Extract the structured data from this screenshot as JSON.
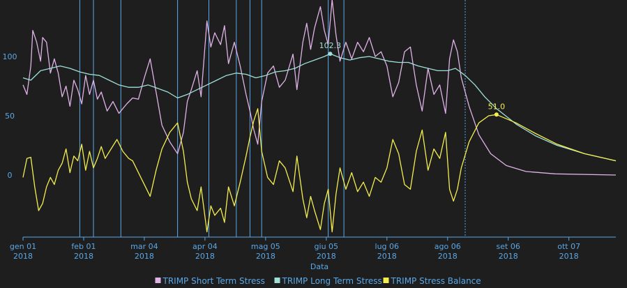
{
  "chart_data": {
    "type": "line",
    "xlabel": "Data",
    "ylabel": "",
    "x_range": [
      "2018-01-01",
      "2018-10-31"
    ],
    "ylim": [
      -50,
      145
    ],
    "y_ticks": [
      0,
      50,
      100
    ],
    "x_ticks": [
      {
        "date": "2018-01-01",
        "line1": "gen 01",
        "line2": "2018"
      },
      {
        "date": "2018-02-01",
        "line1": "feb 01",
        "line2": "2018"
      },
      {
        "date": "2018-03-04",
        "line1": "mar 04",
        "line2": "2018"
      },
      {
        "date": "2018-04-04",
        "line1": "apr 04",
        "line2": "2018"
      },
      {
        "date": "2018-05-05",
        "line1": "mag 05",
        "line2": "2018"
      },
      {
        "date": "2018-06-05",
        "line1": "giu 05",
        "line2": "2018"
      },
      {
        "date": "2018-07-06",
        "line1": "lug 06",
        "line2": "2018"
      },
      {
        "date": "2018-08-06",
        "line1": "ago 06",
        "line2": "2018"
      },
      {
        "date": "2018-09-06",
        "line1": "set 06",
        "line2": "2018"
      },
      {
        "date": "2018-10-07",
        "line1": "ott 07",
        "line2": "2018"
      }
    ],
    "today_marker": "2018-08-15",
    "event_lines": [
      "2018-01-30",
      "2018-02-06",
      "2018-02-20",
      "2018-03-21",
      "2018-04-06",
      "2018-04-20",
      "2018-04-27",
      "2018-05-03",
      "2018-06-06",
      "2018-06-14"
    ],
    "annotations": [
      {
        "series": "TRIMP Long Term Stress",
        "date": "2018-06-07",
        "value": 102.3,
        "label": "102.3",
        "color": "#9fe0d8"
      },
      {
        "series": "TRIMP Stress Balance",
        "date": "2018-08-31",
        "value": 51.0,
        "label": "51.0",
        "color": "#f4ee50"
      }
    ],
    "series": [
      {
        "name": "TRIMP Short Term Stress",
        "color": "#e0b3e8",
        "points": [
          [
            "2018-01-01",
            76
          ],
          [
            "2018-01-03",
            68
          ],
          [
            "2018-01-05",
            92
          ],
          [
            "2018-01-06",
            122
          ],
          [
            "2018-01-08",
            112
          ],
          [
            "2018-01-10",
            96
          ],
          [
            "2018-01-11",
            116
          ],
          [
            "2018-01-13",
            112
          ],
          [
            "2018-01-15",
            86
          ],
          [
            "2018-01-17",
            98
          ],
          [
            "2018-01-19",
            86
          ],
          [
            "2018-01-21",
            66
          ],
          [
            "2018-01-23",
            75
          ],
          [
            "2018-01-25",
            58
          ],
          [
            "2018-01-27",
            80
          ],
          [
            "2018-01-29",
            72
          ],
          [
            "2018-01-31",
            60
          ],
          [
            "2018-02-02",
            84
          ],
          [
            "2018-02-04",
            68
          ],
          [
            "2018-02-06",
            80
          ],
          [
            "2018-02-08",
            64
          ],
          [
            "2018-02-10",
            70
          ],
          [
            "2018-02-13",
            54
          ],
          [
            "2018-02-16",
            62
          ],
          [
            "2018-02-19",
            52
          ],
          [
            "2018-02-23",
            60
          ],
          [
            "2018-02-26",
            65
          ],
          [
            "2018-03-01",
            64
          ],
          [
            "2018-03-04",
            82
          ],
          [
            "2018-03-07",
            98
          ],
          [
            "2018-03-10",
            70
          ],
          [
            "2018-03-13",
            42
          ],
          [
            "2018-03-17",
            28
          ],
          [
            "2018-03-21",
            18
          ],
          [
            "2018-03-24",
            36
          ],
          [
            "2018-03-26",
            62
          ],
          [
            "2018-03-28",
            72
          ],
          [
            "2018-03-31",
            88
          ],
          [
            "2018-04-02",
            66
          ],
          [
            "2018-04-05",
            130
          ],
          [
            "2018-04-07",
            108
          ],
          [
            "2018-04-09",
            120
          ],
          [
            "2018-04-12",
            110
          ],
          [
            "2018-04-14",
            126
          ],
          [
            "2018-04-16",
            94
          ],
          [
            "2018-04-19",
            112
          ],
          [
            "2018-04-22",
            92
          ],
          [
            "2018-04-25",
            68
          ],
          [
            "2018-04-27",
            54
          ],
          [
            "2018-04-29",
            38
          ],
          [
            "2018-05-01",
            26
          ],
          [
            "2018-05-03",
            62
          ],
          [
            "2018-05-06",
            86
          ],
          [
            "2018-05-09",
            92
          ],
          [
            "2018-05-12",
            74
          ],
          [
            "2018-05-15",
            80
          ],
          [
            "2018-05-19",
            102
          ],
          [
            "2018-05-21",
            72
          ],
          [
            "2018-05-24",
            112
          ],
          [
            "2018-05-26",
            128
          ],
          [
            "2018-05-28",
            106
          ],
          [
            "2018-05-30",
            124
          ],
          [
            "2018-06-02",
            142
          ],
          [
            "2018-06-04",
            122
          ],
          [
            "2018-06-06",
            110
          ],
          [
            "2018-06-08",
            148
          ],
          [
            "2018-06-10",
            118
          ],
          [
            "2018-06-12",
            96
          ],
          [
            "2018-06-15",
            112
          ],
          [
            "2018-06-18",
            98
          ],
          [
            "2018-06-21",
            112
          ],
          [
            "2018-06-24",
            104
          ],
          [
            "2018-06-27",
            116
          ],
          [
            "2018-06-30",
            100
          ],
          [
            "2018-07-03",
            104
          ],
          [
            "2018-07-06",
            92
          ],
          [
            "2018-07-09",
            66
          ],
          [
            "2018-07-12",
            78
          ],
          [
            "2018-07-15",
            104
          ],
          [
            "2018-07-18",
            108
          ],
          [
            "2018-07-21",
            76
          ],
          [
            "2018-07-24",
            54
          ],
          [
            "2018-07-27",
            90
          ],
          [
            "2018-07-30",
            68
          ],
          [
            "2018-08-02",
            76
          ],
          [
            "2018-08-05",
            52
          ],
          [
            "2018-08-07",
            98
          ],
          [
            "2018-08-09",
            114
          ],
          [
            "2018-08-11",
            104
          ],
          [
            "2018-08-13",
            82
          ],
          [
            "2018-08-17",
            58
          ],
          [
            "2018-08-22",
            34
          ],
          [
            "2018-08-28",
            18
          ],
          [
            "2018-09-05",
            8
          ],
          [
            "2018-09-15",
            3
          ],
          [
            "2018-09-30",
            1
          ],
          [
            "2018-10-31",
            0
          ]
        ]
      },
      {
        "name": "TRIMP Long Term Stress",
        "color": "#9fe0d8",
        "points": [
          [
            "2018-01-01",
            82
          ],
          [
            "2018-01-05",
            80
          ],
          [
            "2018-01-10",
            88
          ],
          [
            "2018-01-15",
            90
          ],
          [
            "2018-01-20",
            92
          ],
          [
            "2018-01-25",
            90
          ],
          [
            "2018-01-30",
            87
          ],
          [
            "2018-02-04",
            85
          ],
          [
            "2018-02-09",
            84
          ],
          [
            "2018-02-14",
            80
          ],
          [
            "2018-02-19",
            76
          ],
          [
            "2018-02-24",
            74
          ],
          [
            "2018-03-01",
            74
          ],
          [
            "2018-03-06",
            76
          ],
          [
            "2018-03-11",
            73
          ],
          [
            "2018-03-16",
            70
          ],
          [
            "2018-03-21",
            65
          ],
          [
            "2018-03-26",
            68
          ],
          [
            "2018-03-31",
            72
          ],
          [
            "2018-04-05",
            76
          ],
          [
            "2018-04-10",
            80
          ],
          [
            "2018-04-15",
            84
          ],
          [
            "2018-04-20",
            86
          ],
          [
            "2018-04-25",
            85
          ],
          [
            "2018-04-30",
            82
          ],
          [
            "2018-05-05",
            84
          ],
          [
            "2018-05-10",
            87
          ],
          [
            "2018-05-15",
            88
          ],
          [
            "2018-05-20",
            90
          ],
          [
            "2018-05-25",
            94
          ],
          [
            "2018-05-30",
            97
          ],
          [
            "2018-06-04",
            100
          ],
          [
            "2018-06-07",
            102.3
          ],
          [
            "2018-06-12",
            99
          ],
          [
            "2018-06-17",
            97
          ],
          [
            "2018-06-22",
            99
          ],
          [
            "2018-06-27",
            100
          ],
          [
            "2018-07-02",
            98
          ],
          [
            "2018-07-07",
            96
          ],
          [
            "2018-07-12",
            95
          ],
          [
            "2018-07-17",
            95
          ],
          [
            "2018-07-22",
            92
          ],
          [
            "2018-07-27",
            90
          ],
          [
            "2018-08-01",
            88
          ],
          [
            "2018-08-06",
            88
          ],
          [
            "2018-08-10",
            90
          ],
          [
            "2018-08-15",
            84
          ],
          [
            "2018-08-20",
            76
          ],
          [
            "2018-08-25",
            66
          ],
          [
            "2018-08-31",
            56
          ],
          [
            "2018-09-10",
            43
          ],
          [
            "2018-09-20",
            33
          ],
          [
            "2018-10-01",
            25
          ],
          [
            "2018-10-15",
            18
          ],
          [
            "2018-10-31",
            12
          ]
        ]
      },
      {
        "name": "TRIMP Stress Balance",
        "color": "#f4ee50",
        "points": [
          [
            "2018-01-01",
            -2
          ],
          [
            "2018-01-03",
            14
          ],
          [
            "2018-01-05",
            15
          ],
          [
            "2018-01-07",
            -10
          ],
          [
            "2018-01-09",
            -30
          ],
          [
            "2018-01-11",
            -24
          ],
          [
            "2018-01-13",
            -10
          ],
          [
            "2018-01-15",
            -2
          ],
          [
            "2018-01-17",
            -8
          ],
          [
            "2018-01-19",
            4
          ],
          [
            "2018-01-21",
            10
          ],
          [
            "2018-01-23",
            22
          ],
          [
            "2018-01-25",
            2
          ],
          [
            "2018-01-27",
            16
          ],
          [
            "2018-01-29",
            12
          ],
          [
            "2018-01-31",
            26
          ],
          [
            "2018-02-02",
            4
          ],
          [
            "2018-02-04",
            20
          ],
          [
            "2018-02-06",
            6
          ],
          [
            "2018-02-08",
            14
          ],
          [
            "2018-02-10",
            24
          ],
          [
            "2018-02-12",
            14
          ],
          [
            "2018-02-15",
            22
          ],
          [
            "2018-02-18",
            30
          ],
          [
            "2018-02-21",
            20
          ],
          [
            "2018-02-24",
            14
          ],
          [
            "2018-02-26",
            12
          ],
          [
            "2018-03-01",
            2
          ],
          [
            "2018-03-04",
            -8
          ],
          [
            "2018-03-07",
            -18
          ],
          [
            "2018-03-10",
            4
          ],
          [
            "2018-03-13",
            22
          ],
          [
            "2018-03-17",
            36
          ],
          [
            "2018-03-21",
            44
          ],
          [
            "2018-03-24",
            20
          ],
          [
            "2018-03-26",
            -6
          ],
          [
            "2018-03-28",
            -20
          ],
          [
            "2018-03-31",
            -30
          ],
          [
            "2018-04-02",
            -10
          ],
          [
            "2018-04-05",
            -48
          ],
          [
            "2018-04-07",
            -26
          ],
          [
            "2018-04-09",
            -34
          ],
          [
            "2018-04-12",
            -28
          ],
          [
            "2018-04-14",
            -40
          ],
          [
            "2018-04-16",
            -10
          ],
          [
            "2018-04-19",
            -26
          ],
          [
            "2018-04-22",
            -6
          ],
          [
            "2018-04-25",
            16
          ],
          [
            "2018-04-27",
            32
          ],
          [
            "2018-04-29",
            46
          ],
          [
            "2018-05-01",
            56
          ],
          [
            "2018-05-03",
            20
          ],
          [
            "2018-05-06",
            -2
          ],
          [
            "2018-05-09",
            -8
          ],
          [
            "2018-05-12",
            12
          ],
          [
            "2018-05-15",
            6
          ],
          [
            "2018-05-19",
            -14
          ],
          [
            "2018-05-21",
            16
          ],
          [
            "2018-05-24",
            -20
          ],
          [
            "2018-05-26",
            -36
          ],
          [
            "2018-05-28",
            -18
          ],
          [
            "2018-05-30",
            -30
          ],
          [
            "2018-06-02",
            -46
          ],
          [
            "2018-06-04",
            -24
          ],
          [
            "2018-06-06",
            -12
          ],
          [
            "2018-06-08",
            -48
          ],
          [
            "2018-06-10",
            -16
          ],
          [
            "2018-06-12",
            6
          ],
          [
            "2018-06-15",
            -12
          ],
          [
            "2018-06-18",
            2
          ],
          [
            "2018-06-21",
            -14
          ],
          [
            "2018-06-24",
            -6
          ],
          [
            "2018-06-27",
            -18
          ],
          [
            "2018-06-30",
            -2
          ],
          [
            "2018-07-03",
            -6
          ],
          [
            "2018-07-06",
            6
          ],
          [
            "2018-07-09",
            30
          ],
          [
            "2018-07-12",
            18
          ],
          [
            "2018-07-15",
            -8
          ],
          [
            "2018-07-18",
            -12
          ],
          [
            "2018-07-21",
            20
          ],
          [
            "2018-07-24",
            38
          ],
          [
            "2018-07-27",
            4
          ],
          [
            "2018-07-30",
            22
          ],
          [
            "2018-08-02",
            14
          ],
          [
            "2018-08-05",
            36
          ],
          [
            "2018-08-07",
            -12
          ],
          [
            "2018-08-09",
            -22
          ],
          [
            "2018-08-11",
            -12
          ],
          [
            "2018-08-13",
            6
          ],
          [
            "2018-08-17",
            28
          ],
          [
            "2018-08-22",
            44
          ],
          [
            "2018-08-27",
            50
          ],
          [
            "2018-08-31",
            51
          ],
          [
            "2018-09-10",
            44
          ],
          [
            "2018-09-20",
            35
          ],
          [
            "2018-10-01",
            26
          ],
          [
            "2018-10-15",
            18
          ],
          [
            "2018-10-31",
            12
          ]
        ]
      }
    ],
    "legend": [
      {
        "label": "TRIMP Short Term Stress",
        "color": "#e0b3e8"
      },
      {
        "label": "TRIMP Long Term Stress",
        "color": "#9fe0d8"
      },
      {
        "label": "TRIMP Stress Balance",
        "color": "#f4ee50"
      }
    ],
    "legend_position": "bottom-center",
    "axis_color": "#5aa8e8",
    "event_line_color": "#5aa8e8"
  }
}
